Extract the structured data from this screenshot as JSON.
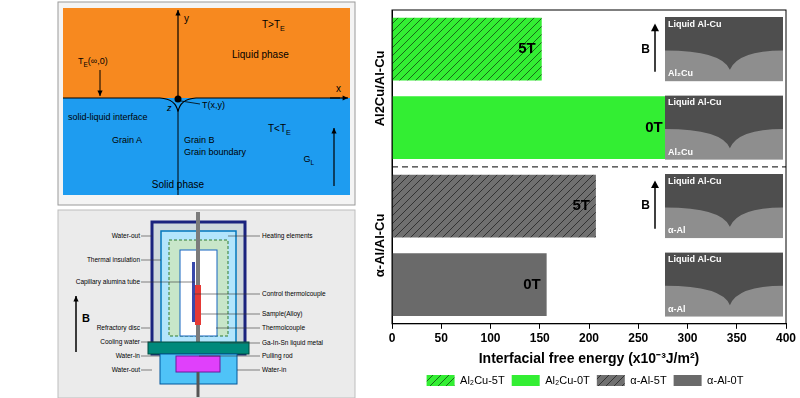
{
  "chart_data": {
    "type": "bar",
    "orientation": "horizontal",
    "categories": [
      null,
      null,
      null,
      null
    ],
    "series": [
      {
        "name": "Al₂Cu-5T",
        "color": "#33ee33",
        "values": [
          152,
          null,
          null,
          null
        ]
      },
      {
        "name": "Al₂Cu-0T",
        "color": "#33ee33",
        "values": [
          null,
          281,
          null,
          null
        ]
      },
      {
        "name": "α-Al-5T",
        "color": "#707070",
        "values": [
          null,
          null,
          207,
          null
        ]
      },
      {
        "name": "α-Al-0T",
        "color": "#6a6a6a",
        "values": [
          null,
          null,
          null,
          157
        ]
      }
    ],
    "bar_texts": [
      "5T",
      "0T",
      "5T",
      "0T"
    ],
    "group_labels": [
      "Al2Cu/Al-Cu",
      "α-Al/Al-Cu"
    ],
    "xlabel": "Interfacial free energy (x10⁻³J/m²)",
    "xlim": [
      0,
      400
    ],
    "xticks": [
      0,
      50,
      100,
      150,
      200,
      250,
      300,
      350,
      400
    ],
    "grid": false,
    "legend": "bottom",
    "tick_labels": "x",
    "insets": [
      {
        "top": "Liquid Al-Cu",
        "bottom": "Al₂Cu",
        "field": "B"
      },
      {
        "top": "Liquid Al-Cu",
        "bottom": "Al₂Cu"
      },
      {
        "top": "Liquid Al-Cu",
        "bottom": "α-Al",
        "field": "B"
      },
      {
        "top": "Liquid Al-Cu",
        "bottom": "α-Al"
      }
    ]
  },
  "schematic": {
    "liquid": "Liquid phase",
    "solid": "Solid phase",
    "interface": "solid-liquid interface",
    "grain_a": "Grain A",
    "grain_b": "Grain B",
    "boundary": "Grain boundary",
    "x_axis": "x",
    "y_axis": "y",
    "origin": "z",
    "point": "T(x,y)",
    "far_temp": {
      "text": "T",
      "sub": "E",
      "after": "(∞,0)"
    },
    "above": {
      "text": "T>T",
      "sub": "E"
    },
    "below": {
      "text": "T<T",
      "sub": "E"
    },
    "gradient": {
      "text": "G",
      "sub": "L"
    }
  },
  "furnace": {
    "left_labels": [
      "Water-out",
      "Thermal insulation",
      "Capillary alumina tube",
      "Refractory disc",
      "Cooling water",
      "Water-in",
      "Water-out"
    ],
    "right_labels": [
      "Heating elements",
      "Control thermolcouple",
      "Sample(Alloy)",
      "Thermolcouple",
      "Ga-In-Sn liquid metal",
      "Pulling rod",
      "Water-in"
    ],
    "field": "B"
  }
}
